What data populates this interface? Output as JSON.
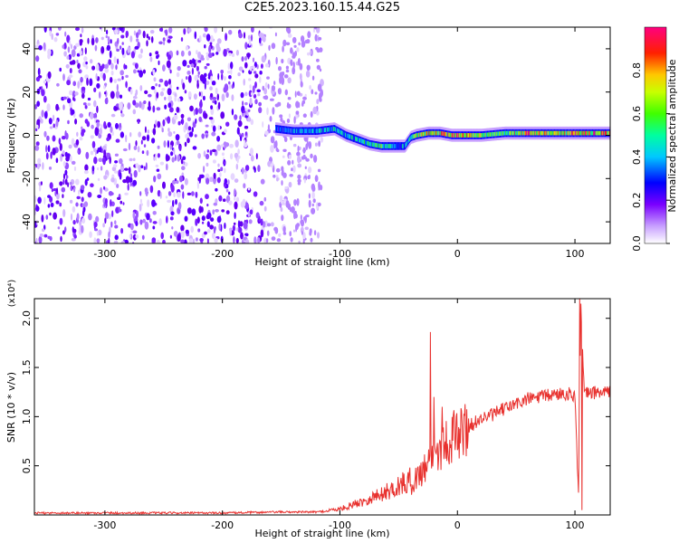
{
  "title": "C2E5.2023.160.15.44.G25",
  "chart_data": [
    {
      "type": "heatmap",
      "title": "C2E5.2023.160.15.44.G25",
      "xlabel": "Height of straight line (km)",
      "ylabel": "Frequency (Hz)",
      "xlim": [
        -360,
        130
      ],
      "ylim": [
        -50,
        50
      ],
      "x_ticks": [
        -300,
        -200,
        -100,
        0,
        100
      ],
      "y_ticks": [
        -40,
        -20,
        0,
        20,
        40
      ],
      "colorbar": {
        "label": "Normalized spectral amplitude",
        "range": [
          0.0,
          1.0
        ],
        "ticks": [
          0.0,
          0.2,
          0.4,
          0.6,
          0.8
        ],
        "colormap": [
          "#ffffff",
          "#c8a0ff",
          "#8a2be2",
          "#5000ff",
          "#0000ff",
          "#0080ff",
          "#00ffff",
          "#00ff60",
          "#60ff00",
          "#ffff00",
          "#ff8000",
          "#ff0000",
          "#ff0080"
        ]
      },
      "noise_region_x": [
        -360,
        -115
      ],
      "ridge": {
        "x": [
          -155,
          -140,
          -120,
          -105,
          -95,
          -85,
          -75,
          -65,
          -55,
          -45,
          -40,
          -35,
          -25,
          -15,
          -5,
          0,
          20,
          40,
          60,
          80,
          100,
          130
        ],
        "y": [
          3,
          2,
          2,
          3,
          0,
          -2,
          -4,
          -5,
          -5,
          -5,
          -1,
          0,
          1,
          1,
          0,
          0,
          0,
          1,
          1,
          1,
          1,
          1
        ],
        "amplitude": [
          0.3,
          0.35,
          0.4,
          0.45,
          0.4,
          0.45,
          0.5,
          0.55,
          0.45,
          0.4,
          0.5,
          0.6,
          0.7,
          0.75,
          0.8,
          0.85,
          0.6,
          0.55,
          0.85,
          0.6,
          0.85,
          0.7
        ]
      }
    },
    {
      "type": "line",
      "xlabel": "Height of straight line (km)",
      "ylabel": "SNR (10 * v/v)",
      "y_unit_label": "(x10⁴)",
      "xlim": [
        -360,
        130
      ],
      "ylim": [
        0,
        2.2
      ],
      "x_ticks": [
        -300,
        -200,
        -100,
        0,
        100
      ],
      "y_ticks": [
        0.5,
        1.0,
        1.5,
        2.0
      ],
      "y_tick_labels": [
        "0.5",
        "1.0",
        "1.5",
        "2.0"
      ],
      "color": "#e8322f",
      "series": [
        {
          "x": [
            -360,
            -300,
            -200,
            -150,
            -120,
            -100,
            -80,
            -60,
            -40,
            -30,
            -20,
            -10,
            0,
            10,
            20,
            30,
            40,
            50,
            60,
            70,
            80,
            90,
            100,
            103,
            105,
            108,
            110,
            120,
            130
          ],
          "values": [
            0.02,
            0.02,
            0.02,
            0.03,
            0.03,
            0.05,
            0.12,
            0.2,
            0.3,
            0.45,
            0.62,
            0.74,
            0.82,
            0.9,
            0.98,
            1.02,
            1.08,
            1.13,
            1.18,
            1.2,
            1.22,
            1.24,
            1.22,
            0.2,
            2.1,
            1.2,
            1.24,
            1.25,
            1.25
          ]
        }
      ],
      "spikes": [
        {
          "x": -23,
          "value": 1.86
        },
        {
          "x": -20,
          "value": 1.2
        },
        {
          "x": -13,
          "value": 1.1
        },
        {
          "x": 104,
          "value": 2.2
        },
        {
          "x": 106,
          "value": 0.05
        }
      ]
    }
  ]
}
